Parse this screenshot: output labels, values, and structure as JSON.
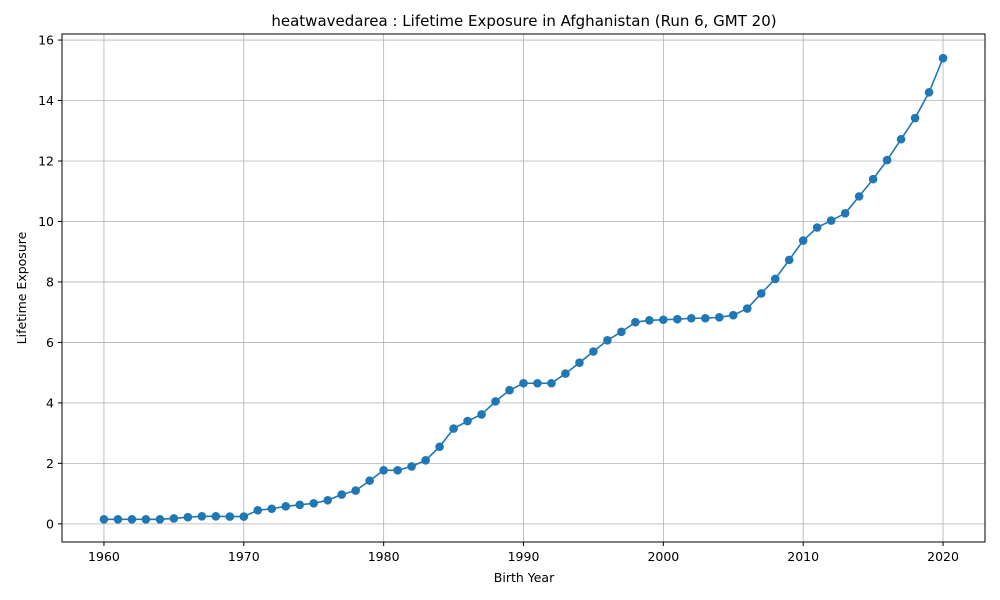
{
  "chart_data": {
    "type": "line",
    "title": "heatwavedarea : Lifetime Exposure in Afghanistan (Run 6, GMT 20)",
    "xlabel": "Birth Year",
    "ylabel": "Lifetime Exposure",
    "xlim": [
      1957,
      2023
    ],
    "ylim": [
      -0.6,
      16.2
    ],
    "xticks": [
      1960,
      1970,
      1980,
      1990,
      2000,
      2010,
      2020
    ],
    "yticks": [
      0,
      2,
      4,
      6,
      8,
      10,
      12,
      14,
      16
    ],
    "grid": true,
    "line_color": "#1f77b4",
    "marker": "circle",
    "series": [
      {
        "x": [
          1960,
          1961,
          1962,
          1963,
          1964,
          1965,
          1966,
          1967,
          1968,
          1969,
          1970,
          1971,
          1972,
          1973,
          1974,
          1975,
          1976,
          1977,
          1978,
          1979,
          1980,
          1981,
          1982,
          1983,
          1984,
          1985,
          1986,
          1987,
          1988,
          1989,
          1990,
          1991,
          1992,
          1993,
          1994,
          1995,
          1996,
          1997,
          1998,
          1999,
          2000,
          2001,
          2002,
          2003,
          2004,
          2005,
          2006,
          2007,
          2008,
          2009,
          2010,
          2011,
          2012,
          2013,
          2014,
          2015,
          2016,
          2017,
          2018,
          2019,
          2020
        ],
        "values": [
          0.15,
          0.15,
          0.15,
          0.15,
          0.15,
          0.18,
          0.22,
          0.25,
          0.25,
          0.24,
          0.24,
          0.45,
          0.5,
          0.58,
          0.63,
          0.68,
          0.78,
          0.97,
          1.1,
          1.43,
          1.77,
          1.77,
          1.9,
          2.1,
          2.55,
          3.15,
          3.4,
          3.62,
          4.05,
          4.42,
          4.65,
          4.65,
          4.65,
          4.97,
          5.33,
          5.7,
          6.07,
          6.35,
          6.67,
          6.73,
          6.75,
          6.77,
          6.8,
          6.8,
          6.83,
          6.9,
          7.12,
          7.62,
          8.1,
          8.73,
          9.37,
          9.8,
          10.03,
          10.27,
          10.83,
          11.4,
          12.03,
          12.72,
          13.42,
          14.27,
          15.4
        ]
      }
    ]
  }
}
